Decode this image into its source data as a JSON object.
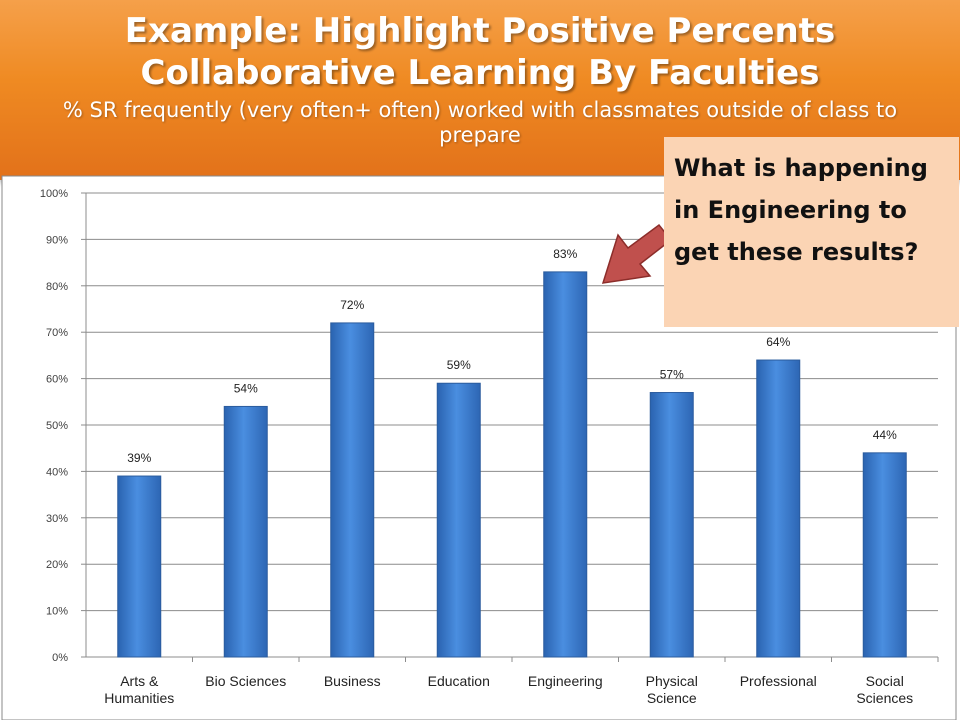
{
  "header": {
    "title_line1": "Example: Highlight Positive Percents",
    "title_line2": "Collaborative Learning By Faculties",
    "subtitle": "% SR frequently (very often+ often) worked with classmates outside of class to prepare"
  },
  "callout": {
    "text": "What is happening in Engineering to get these results?"
  },
  "colors": {
    "banner": "#ef8a22",
    "bar": "#3f7fd0",
    "callout_bg": "#fbd4b4",
    "arrow": "#c0504d"
  },
  "chart_data": {
    "type": "bar",
    "categories": [
      "Arts & Humanities",
      "Bio Sciences",
      "Business",
      "Education",
      "Engineering",
      "Physical Science",
      "Professional",
      "Social Sciences"
    ],
    "values": [
      39,
      54,
      72,
      59,
      83,
      57,
      64,
      44
    ],
    "data_labels": [
      "39%",
      "54%",
      "72%",
      "59%",
      "83%",
      "57%",
      "64%",
      "44%"
    ],
    "ylim": [
      0,
      100
    ],
    "yticks": [
      "0%",
      "10%",
      "20%",
      "30%",
      "40%",
      "50%",
      "60%",
      "70%",
      "80%",
      "90%",
      "100%"
    ],
    "grid": true,
    "legend": "none"
  }
}
